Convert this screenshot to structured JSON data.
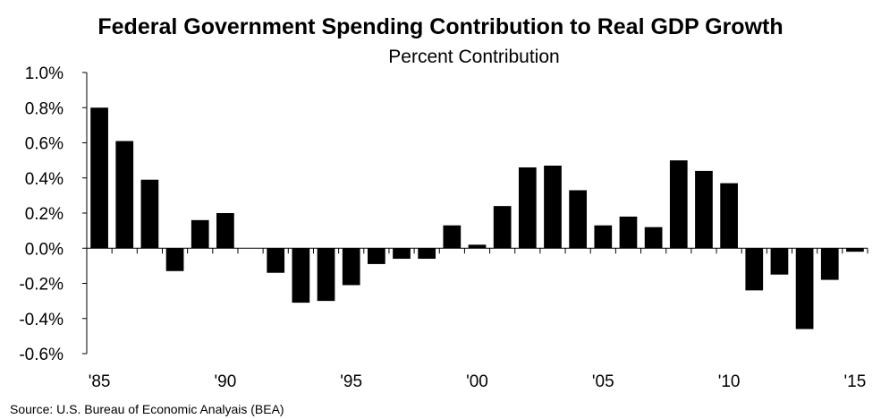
{
  "chart_data": {
    "type": "bar",
    "title": "Federal Government Spending Contribution to Real GDP Growth",
    "subtitle": "Percent Contribution",
    "source": "Source:  U.S. Bureau of Economic Analyais (BEA)",
    "xlabel": "",
    "ylabel": "",
    "ylim": [
      -0.6,
      1.0
    ],
    "y_ticks": [
      "1.0%",
      "0.8%",
      "0.6%",
      "0.4%",
      "0.2%",
      "0.0%",
      "-0.2%",
      "-0.4%",
      "-0.6%"
    ],
    "x_tick_labels": [
      "'85",
      "'90",
      "'95",
      "'00",
      "'05",
      "'10",
      "'15"
    ],
    "grid": false,
    "legend": "none",
    "bar_color": "#000000",
    "categories": [
      1985,
      1986,
      1987,
      1988,
      1989,
      1990,
      1991,
      1992,
      1993,
      1994,
      1995,
      1996,
      1997,
      1998,
      1999,
      2000,
      2001,
      2002,
      2003,
      2004,
      2005,
      2006,
      2007,
      2008,
      2009,
      2010,
      2011,
      2012,
      2013,
      2014,
      2015
    ],
    "values": [
      0.8,
      0.61,
      0.39,
      -0.13,
      0.16,
      0.2,
      0.0,
      -0.14,
      -0.31,
      -0.3,
      -0.21,
      -0.09,
      -0.06,
      -0.06,
      0.13,
      0.02,
      0.24,
      0.46,
      0.47,
      0.33,
      0.13,
      0.18,
      0.12,
      0.5,
      0.44,
      0.37,
      -0.24,
      -0.15,
      -0.46,
      -0.18,
      -0.02
    ]
  }
}
